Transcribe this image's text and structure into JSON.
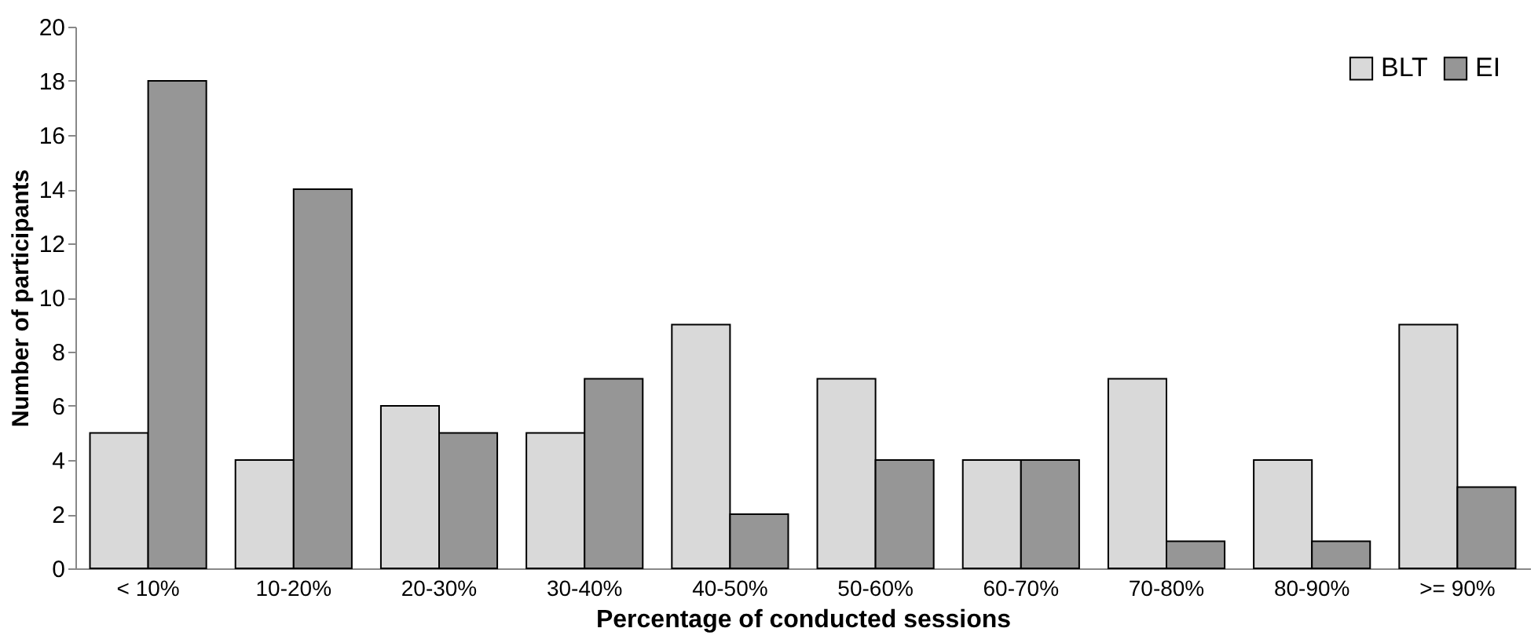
{
  "chart_data": {
    "type": "bar",
    "xlabel": "Percentage of conducted sessions",
    "ylabel": "Number of participants",
    "categories": [
      "< 10%",
      "10-20%",
      "20-30%",
      "30-40%",
      "40-50%",
      "50-60%",
      "60-70%",
      "70-80%",
      "80-90%",
      ">= 90%"
    ],
    "series": [
      {
        "name": "BLT",
        "color": "#d9d9d9",
        "values": [
          5,
          4,
          6,
          5,
          9,
          7,
          4,
          7,
          4,
          9
        ]
      },
      {
        "name": "EI",
        "color": "#969696",
        "values": [
          18,
          14,
          5,
          7,
          2,
          4,
          4,
          1,
          1,
          3
        ]
      }
    ],
    "ylim": [
      0,
      20
    ],
    "yticks": [
      0,
      2,
      4,
      6,
      8,
      10,
      12,
      14,
      16,
      18,
      20
    ],
    "legend": "top right"
  }
}
